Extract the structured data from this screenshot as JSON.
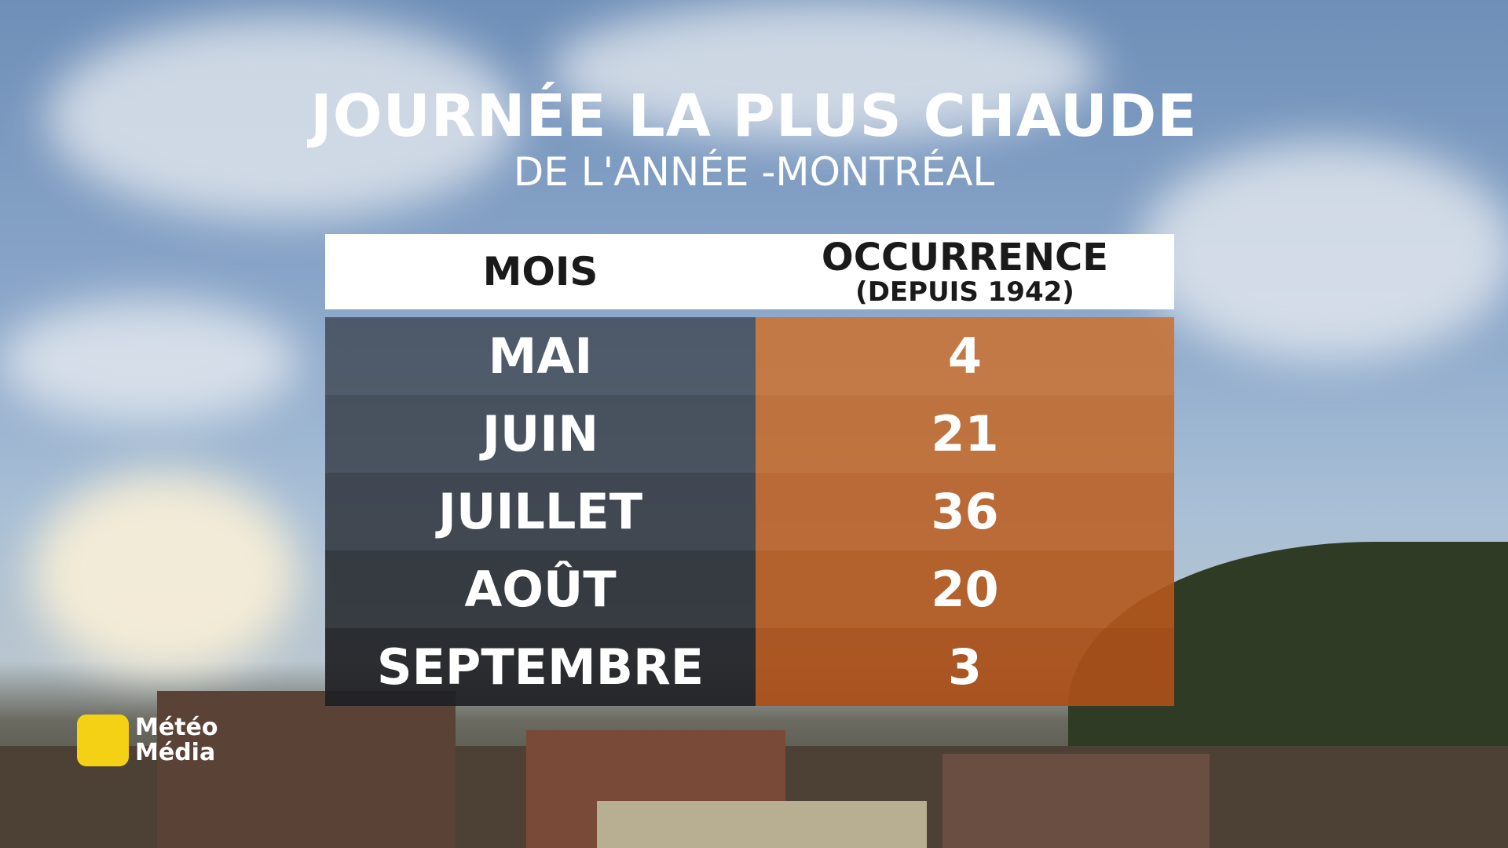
{
  "header": {
    "title": "JOURNÉE LA PLUS CHAUDE",
    "subtitle": "DE L'ANNÉE -MONTRÉAL"
  },
  "table": {
    "columns": [
      {
        "label": "MOIS"
      },
      {
        "label": "OCCURRENCE",
        "sublabel": "(DEPUIS 1942)"
      }
    ],
    "rows": [
      [
        "MAI",
        4
      ],
      [
        "JUIN",
        21
      ],
      [
        "JUILLET",
        36
      ],
      [
        "AOÛT",
        20
      ],
      [
        "SEPTEMBRE",
        3
      ]
    ]
  },
  "logo": {
    "line1": "Météo",
    "line2": "Média"
  }
}
